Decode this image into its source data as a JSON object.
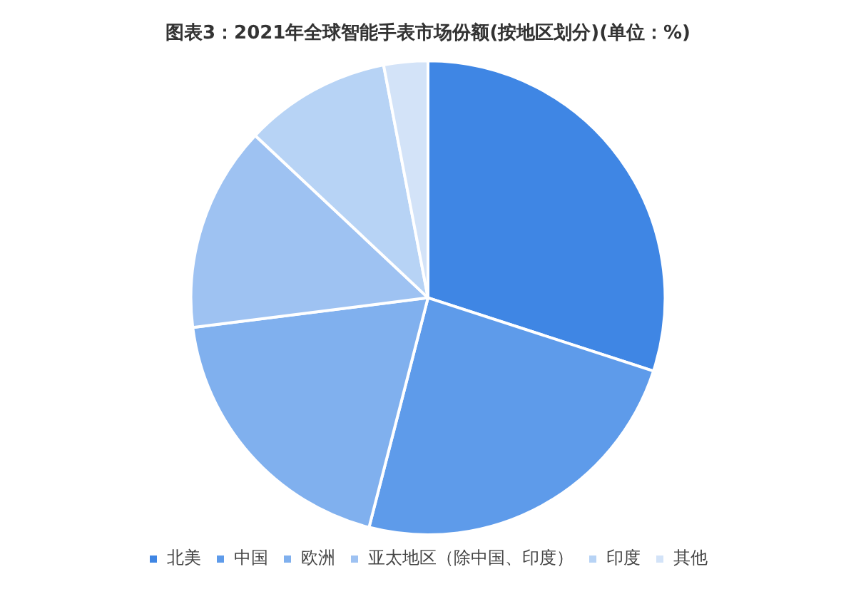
{
  "chart_data": {
    "type": "pie",
    "title": "图表3：2021年全球智能手表市场份额(按地区划分)(单位：%)",
    "categories": [
      "北美",
      "中国",
      "欧洲",
      "亚太地区（除中国、印度）",
      "印度",
      "其他"
    ],
    "values": [
      30,
      24,
      19,
      14,
      10,
      3
    ],
    "colors": [
      "#3f86e4",
      "#5e9bea",
      "#80b0ee",
      "#9ec2f2",
      "#b7d3f5",
      "#d3e3f8"
    ],
    "legend": "bottom"
  }
}
